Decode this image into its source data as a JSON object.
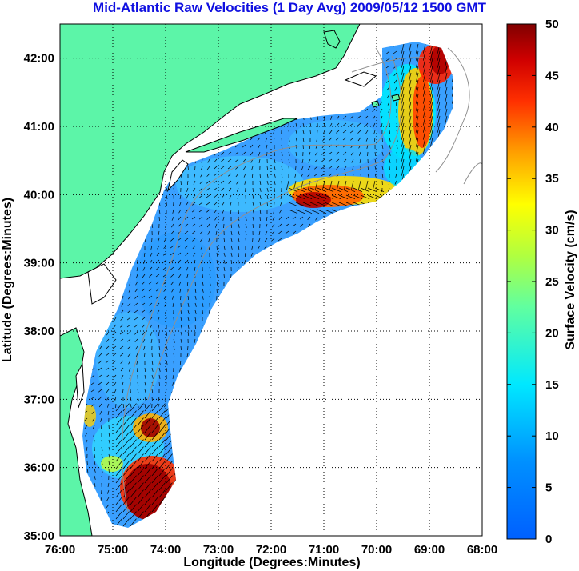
{
  "title": "Mid-Atlantic Raw Velocities (1 Day Avg) 2009/05/12 1500 GMT",
  "map": {
    "xlabel": "Longitude (Degrees:Minutes)",
    "ylabel": "Latitude (Degrees:Minutes)",
    "x_ticks": [
      "76:00",
      "75:00",
      "74:00",
      "73:00",
      "72:00",
      "71:00",
      "70:00",
      "69:00",
      "68:00"
    ],
    "y_ticks": [
      "35:00",
      "36:00",
      "37:00",
      "38:00",
      "39:00",
      "40:00",
      "41:00",
      "42:00"
    ],
    "lon_range": [
      -76,
      -68
    ],
    "lat_range": [
      35,
      42.5
    ],
    "land_color": "#5cf5a8",
    "grid": true,
    "grid_style": "dotted"
  },
  "colorbar": {
    "label": "Surface Velocity (cm/s)",
    "ticks": [
      "0",
      "5",
      "10",
      "15",
      "20",
      "25",
      "30",
      "35",
      "40",
      "45",
      "50"
    ],
    "range": [
      0,
      50
    ],
    "colormap": "jet"
  }
}
